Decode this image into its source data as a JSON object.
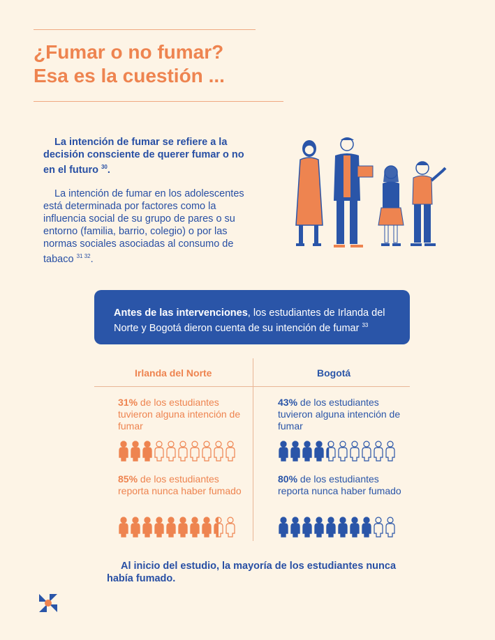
{
  "header": {
    "title_line1": "¿Fumar o no fumar?",
    "title_line2": "Esa es la cuestión ..."
  },
  "intro": {
    "p1_text": "La intención de fumar se refiere a la decisión consciente de querer fumar o no en el futuro",
    "p1_ref": "30",
    "p2_text": "La intención de fumar en los adolescentes está determinada por factores como la influencia social de su grupo de pares o su entorno (familia, barrio, colegio) o por las normas sociales asociadas al consumo de tabaco",
    "p2_ref": "31 32",
    "p2_end": "."
  },
  "banner": {
    "bold": "Antes de las intervenciones",
    "text": ", los estudiantes de Irlanda del Norte y Bogotá dieron cuenta de su intención de fumar",
    "ref": "33"
  },
  "columns": {
    "left": {
      "title": "Irlanda del Norte",
      "stat1_pct": "31%",
      "stat1_text": " de los estudiantes tuvieron alguna intención de fumar",
      "stat1_value": 31,
      "stat2_pct": "85%",
      "stat2_text": " de los estudiantes reporta nunca haber fumado",
      "stat2_value": 85
    },
    "right": {
      "title": "Bogotá",
      "stat1_pct": "43%",
      "stat1_text": " de los estudiantes tuvieron alguna intención de fumar",
      "stat1_value": 43,
      "stat2_pct": "80%",
      "stat2_text": " de los estudiantes reporta nunca haber fumado",
      "stat2_value": 80
    }
  },
  "footer": {
    "text": "Al inicio del estudio, la mayoría de los estudiantes nunca había fumado."
  },
  "colors": {
    "orange": "#ee8450",
    "blue": "#2a55a8",
    "background": "#fdf4e6"
  }
}
